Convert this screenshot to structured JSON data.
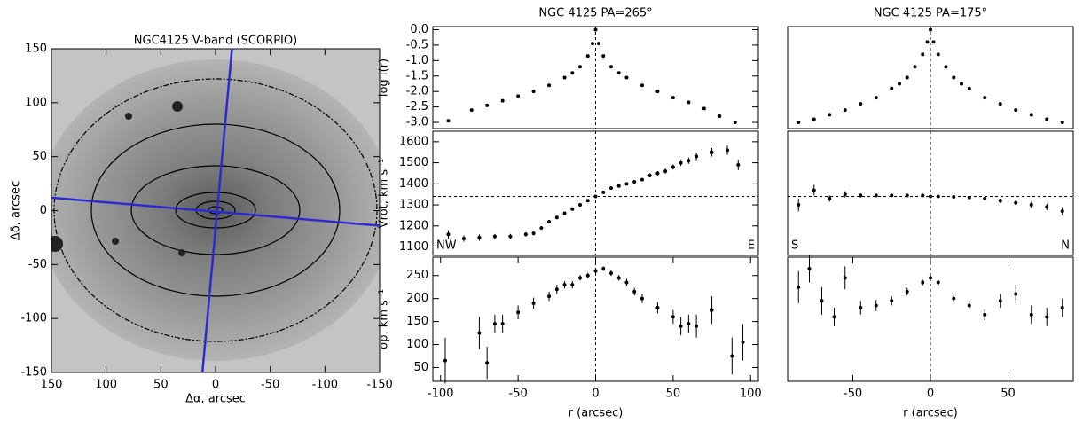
{
  "chart_data": [
    {
      "type": "image",
      "title": "NGC4125 V-band (SCORPIO)",
      "xlabel": "Δα, arcsec",
      "ylabel": "Δδ, arcsec",
      "xlim": [
        150,
        -150
      ],
      "ylim": [
        -150,
        150
      ],
      "xticks": [
        150,
        100,
        50,
        0,
        -50,
        -100,
        -150
      ],
      "yticks": [
        150,
        100,
        50,
        0,
        -50,
        -100,
        -150
      ],
      "slits": [
        {
          "color": "#2a2ad0",
          "x": [
            -15,
            12
          ],
          "y": [
            150,
            -150
          ]
        },
        {
          "color": "#2a2ad0",
          "x": [
            150,
            -150
          ],
          "y": [
            12,
            -14
          ]
        }
      ]
    },
    {
      "type": "scatter",
      "title": "NGC 4125   PA=265°",
      "ylabel": "log I(r)",
      "xlim": [
        -105,
        105
      ],
      "ylim": [
        -3.2,
        0.1
      ],
      "yticks": [
        {
          "value": 0,
          "label": "0.0"
        },
        {
          "value": -0.5,
          "label": "-0.5"
        },
        {
          "value": -1,
          "label": "-1.0"
        },
        {
          "value": -1.5,
          "label": "-1.5"
        },
        {
          "value": -2,
          "label": "-2.0"
        },
        {
          "value": -2.5,
          "label": "-2.5"
        },
        {
          "value": -3,
          "label": "-3.0"
        }
      ],
      "vline": 0,
      "series": [
        {
          "color": "#000000",
          "x": [
            -95,
            -80,
            -70,
            -60,
            -50,
            -40,
            -30,
            -20,
            -15,
            -10,
            -5,
            -2,
            0,
            2,
            5,
            10,
            15,
            20,
            30,
            40,
            50,
            60,
            70,
            80,
            90
          ],
          "values": [
            -2.95,
            -2.6,
            -2.45,
            -2.3,
            -2.15,
            -2.0,
            -1.8,
            -1.55,
            -1.4,
            -1.2,
            -0.85,
            -0.45,
            0,
            -0.45,
            -0.85,
            -1.2,
            -1.4,
            -1.55,
            -1.8,
            -2.0,
            -2.2,
            -2.35,
            -2.55,
            -2.8,
            -3.0
          ]
        }
      ]
    },
    {
      "type": "scatter",
      "title": "NGC 4125   PA=175°",
      "xlim": [
        -92,
        92
      ],
      "ylim": [
        -3.2,
        0.1
      ],
      "vline": 0,
      "series": [
        {
          "color": "#000000",
          "x": [
            -85,
            -75,
            -65,
            -55,
            -45,
            -35,
            -25,
            -20,
            -15,
            -10,
            -5,
            -2,
            0,
            2,
            5,
            10,
            15,
            20,
            25,
            35,
            45,
            55,
            65,
            75,
            85
          ],
          "values": [
            -3.0,
            -2.9,
            -2.75,
            -2.6,
            -2.4,
            -2.2,
            -1.9,
            -1.75,
            -1.55,
            -1.2,
            -0.8,
            -0.4,
            0,
            -0.4,
            -0.8,
            -1.2,
            -1.55,
            -1.75,
            -1.9,
            -2.2,
            -2.4,
            -2.6,
            -2.75,
            -2.9,
            -3.0
          ]
        }
      ]
    },
    {
      "type": "scatter",
      "ylabel": "Vrot, km s⁻¹",
      "xlim": [
        -105,
        105
      ],
      "ylim": [
        1060,
        1650
      ],
      "yticks": [
        1100,
        1200,
        1300,
        1400,
        1500,
        1600
      ],
      "vline": 0,
      "hline": 1340,
      "annotations": [
        {
          "text": "NW",
          "corner": "bottom-left"
        },
        {
          "text": "E",
          "corner": "bottom-right"
        }
      ],
      "series": [
        {
          "color": "#000000",
          "x": [
            -95,
            -85,
            -75,
            -65,
            -55,
            -45,
            -40,
            -35,
            -30,
            -25,
            -20,
            -15,
            -10,
            -5,
            0,
            5,
            10,
            15,
            20,
            25,
            30,
            35,
            40,
            45,
            50,
            55,
            60,
            65,
            75,
            85,
            92
          ],
          "values": [
            1160,
            1140,
            1145,
            1150,
            1150,
            1160,
            1165,
            1190,
            1220,
            1240,
            1260,
            1280,
            1300,
            1320,
            1340,
            1360,
            1380,
            1390,
            1400,
            1410,
            1420,
            1440,
            1450,
            1460,
            1480,
            1500,
            1510,
            1530,
            1550,
            1560,
            1490
          ],
          "errors": [
            20,
            15,
            15,
            12,
            12,
            10,
            10,
            8,
            8,
            8,
            6,
            6,
            6,
            5,
            5,
            5,
            6,
            6,
            6,
            8,
            8,
            10,
            10,
            12,
            12,
            15,
            15,
            18,
            20,
            22,
            25
          ]
        }
      ]
    },
    {
      "type": "scatter",
      "xlim": [
        -92,
        92
      ],
      "ylim": [
        1060,
        1650
      ],
      "vline": 0,
      "hline": 1340,
      "annotations": [
        {
          "text": "S",
          "corner": "bottom-left"
        },
        {
          "text": "N",
          "corner": "bottom-right"
        }
      ],
      "series": [
        {
          "color": "#000000",
          "x": [
            -85,
            -75,
            -65,
            -55,
            -45,
            -35,
            -25,
            -15,
            -5,
            0,
            5,
            15,
            25,
            35,
            45,
            55,
            65,
            75,
            85
          ],
          "values": [
            1300,
            1370,
            1330,
            1350,
            1345,
            1345,
            1345,
            1345,
            1345,
            1340,
            1340,
            1338,
            1335,
            1330,
            1320,
            1310,
            1300,
            1290,
            1270
          ],
          "errors": [
            30,
            25,
            15,
            15,
            10,
            8,
            6,
            5,
            5,
            5,
            5,
            5,
            6,
            8,
            10,
            12,
            15,
            15,
            20
          ]
        }
      ]
    },
    {
      "type": "scatter",
      "ylabel": "σp, km s⁻¹",
      "xlabel": "r (arcsec)",
      "xlim": [
        -105,
        105
      ],
      "ylim": [
        20,
        290
      ],
      "yticks": [
        50,
        100,
        150,
        200,
        250
      ],
      "xticks": [
        -100,
        -50,
        0,
        50,
        100
      ],
      "vline": 0,
      "series": [
        {
          "color": "#000000",
          "x": [
            -97,
            -75,
            -70,
            -65,
            -60,
            -50,
            -40,
            -30,
            -25,
            -20,
            -15,
            -10,
            -5,
            0,
            5,
            10,
            15,
            20,
            25,
            30,
            40,
            50,
            55,
            60,
            65,
            75,
            88,
            95
          ],
          "values": [
            65,
            125,
            60,
            145,
            145,
            170,
            190,
            205,
            220,
            230,
            230,
            245,
            250,
            260,
            265,
            255,
            245,
            235,
            215,
            200,
            180,
            160,
            140,
            145,
            140,
            175,
            75,
            105
          ],
          "errors": [
            50,
            35,
            35,
            20,
            20,
            15,
            12,
            10,
            10,
            8,
            8,
            6,
            6,
            5,
            5,
            6,
            6,
            8,
            8,
            10,
            12,
            15,
            20,
            20,
            25,
            30,
            40,
            40
          ]
        }
      ]
    },
    {
      "type": "scatter",
      "xlabel": "r (arcsec)",
      "xlim": [
        -92,
        92
      ],
      "ylim": [
        20,
        290
      ],
      "xticks": [
        -50,
        0,
        50
      ],
      "vline": 0,
      "series": [
        {
          "color": "#000000",
          "x": [
            -85,
            -78,
            -70,
            -62,
            -55,
            -45,
            -35,
            -25,
            -15,
            -5,
            0,
            5,
            15,
            25,
            35,
            45,
            55,
            65,
            75,
            85
          ],
          "values": [
            225,
            265,
            195,
            160,
            245,
            180,
            185,
            195,
            215,
            235,
            245,
            235,
            200,
            185,
            165,
            195,
            210,
            165,
            160,
            180
          ],
          "errors": [
            35,
            30,
            30,
            20,
            25,
            15,
            12,
            10,
            8,
            6,
            5,
            6,
            8,
            10,
            12,
            15,
            20,
            20,
            20,
            20
          ]
        }
      ]
    }
  ]
}
